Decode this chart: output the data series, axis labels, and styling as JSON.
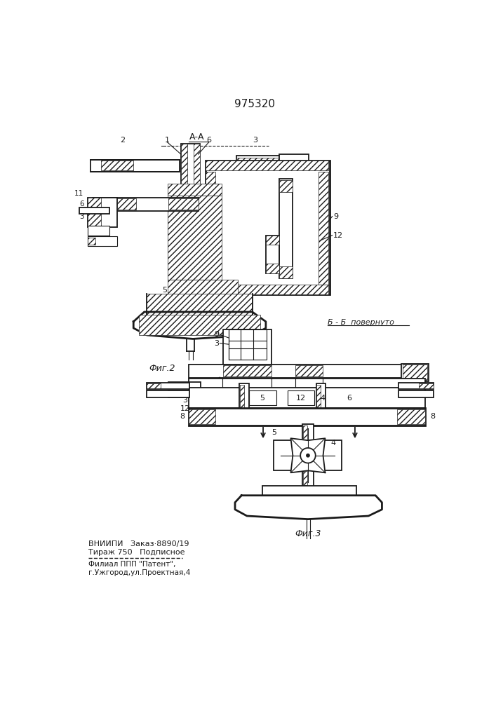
{
  "patent_number": "975320",
  "fig2_label": "Фиг.2",
  "fig3_label": "Фиг.3",
  "section_label_AA": "А-А",
  "section_label_BB": "Б - Б  повернуто",
  "footer_line1": "ВНИИПИ   Заказ·8890/19",
  "footer_line2": "Тираж 750   Подписное",
  "footer_line3": "Филиал ППП \"Патент\",",
  "footer_line4": "г.Ужгород,ул.Проектная,4",
  "bg_color": "#ffffff",
  "line_color": "#1a1a1a"
}
